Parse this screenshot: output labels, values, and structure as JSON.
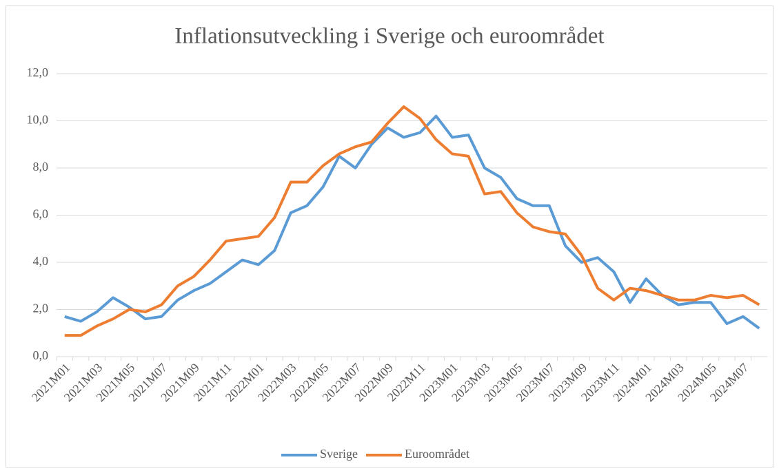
{
  "chart_data": {
    "type": "line",
    "title": "Inflationsutveckling i Sverige och euroområdet",
    "categories": [
      "2021M01",
      null,
      "2021M03",
      null,
      "2021M05",
      null,
      "2021M07",
      null,
      "2021M09",
      null,
      "2021M11",
      null,
      "2022M01",
      null,
      "2022M03",
      null,
      "2022M05",
      null,
      "2022M07",
      null,
      "2022M09",
      null,
      "2022M11",
      null,
      "2023M01",
      null,
      "2023M03",
      null,
      "2023M05",
      null,
      "2023M07",
      null,
      "2023M09",
      null,
      "2023M11",
      null,
      "2024M01",
      null,
      "2024M03",
      null,
      "2024M05",
      null,
      "2024M07",
      null
    ],
    "series": [
      {
        "name": "Sverige",
        "color": "#5b9bd5",
        "values": [
          1.7,
          1.5,
          1.9,
          2.5,
          2.1,
          1.6,
          1.7,
          2.4,
          2.8,
          3.1,
          3.6,
          4.1,
          3.9,
          4.5,
          6.1,
          6.4,
          7.2,
          8.5,
          8.0,
          9.0,
          9.7,
          9.3,
          9.5,
          10.2,
          9.3,
          9.4,
          8.0,
          7.6,
          6.7,
          6.4,
          6.4,
          4.7,
          4.0,
          4.2,
          3.6,
          2.3,
          3.3,
          2.6,
          2.2,
          2.3,
          2.3,
          1.4,
          1.7,
          1.2
        ]
      },
      {
        "name": "Euroområdet",
        "color": "#ed7d31",
        "values": [
          0.9,
          0.9,
          1.3,
          1.6,
          2.0,
          1.9,
          2.2,
          3.0,
          3.4,
          4.1,
          4.9,
          5.0,
          5.1,
          5.9,
          7.4,
          7.4,
          8.1,
          8.6,
          8.9,
          9.1,
          9.9,
          10.6,
          10.1,
          9.2,
          8.6,
          8.5,
          6.9,
          7.0,
          6.1,
          5.5,
          5.3,
          5.2,
          4.3,
          2.9,
          2.4,
          2.9,
          2.8,
          2.6,
          2.4,
          2.4,
          2.6,
          2.5,
          2.6,
          2.2
        ]
      }
    ],
    "ylim": [
      0,
      12
    ],
    "yticks": [
      {
        "value": 0,
        "label": "0,0"
      },
      {
        "value": 2,
        "label": "2,0"
      },
      {
        "value": 4,
        "label": "4,0"
      },
      {
        "value": 6,
        "label": "6,0"
      },
      {
        "value": 8,
        "label": "8,0"
      },
      {
        "value": 10,
        "label": "10,0"
      },
      {
        "value": 12,
        "label": "12,0"
      }
    ],
    "grid": true,
    "legend": "bottom"
  }
}
